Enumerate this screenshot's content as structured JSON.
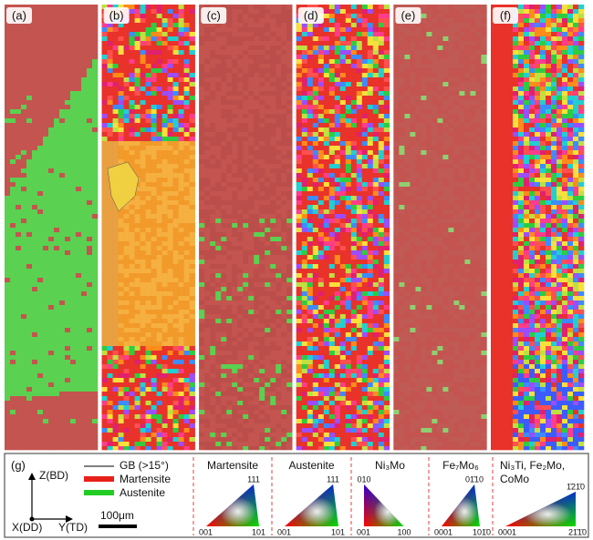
{
  "panels": [
    {
      "label": "(a)"
    },
    {
      "label": "(b)"
    },
    {
      "label": "(c)"
    },
    {
      "label": "(d)"
    },
    {
      "label": "(e)"
    },
    {
      "label": "(f)"
    }
  ],
  "legend": {
    "label": "(g)",
    "axes": {
      "z": "Z(BD)",
      "x": "X(DD)",
      "y": "Y(TD)"
    },
    "items": [
      {
        "label": "GB (>15°)"
      },
      {
        "label": "Martensite"
      },
      {
        "label": "Austenite"
      }
    ],
    "scale_bar": "100μm",
    "ipf": [
      {
        "title": "Martensite",
        "top": "111",
        "left": "001",
        "right": "101"
      },
      {
        "title": "Austenite",
        "top": "111",
        "left": "001",
        "right": "101"
      },
      {
        "title": "Ni₃Mo",
        "top": "010",
        "left": "001",
        "right": "100"
      },
      {
        "title": "Fe₇Mo₆",
        "top": "01̄10",
        "left": "0001",
        "right": "101̄0"
      },
      {
        "title": "Ni₃Ti, Fe₂Mo,",
        "title2": "CoMo",
        "top": "1̄21̄0",
        "left": "0001",
        "right": "21̄1̄0"
      }
    ]
  }
}
